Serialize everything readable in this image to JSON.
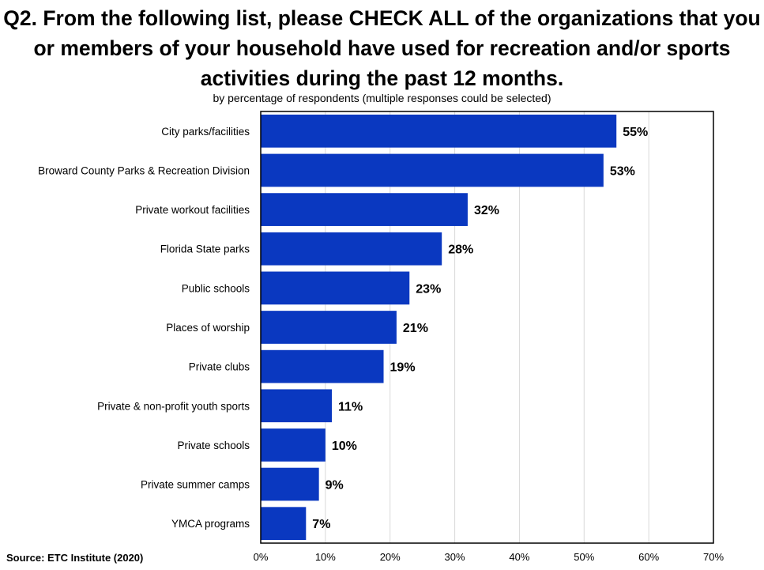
{
  "title": "Q2. From the following list, please CHECK ALL of the organizations that you or members of your household have used for recreation and/or sports activities during the past 12 months.",
  "subtitle": "by percentage of respondents (multiple responses could be selected)",
  "source": "Source:  ETC Institute (2020)",
  "colors": {
    "bar": "#0a38c0",
    "grid": "#d9d9d9",
    "frame": "#000000"
  },
  "chart_data": {
    "type": "bar",
    "orientation": "horizontal",
    "categories": [
      "City parks/facilities",
      "Broward County Parks & Recreation Division",
      "Private workout facilities",
      "Florida State parks",
      "Public schools",
      "Places of worship",
      "Private clubs",
      "Private & non-profit youth sports",
      "Private schools",
      "Private summer camps",
      "YMCA programs"
    ],
    "values": [
      55,
      53,
      32,
      28,
      23,
      21,
      19,
      11,
      10,
      9,
      7
    ],
    "value_labels": [
      "55%",
      "53%",
      "32%",
      "28%",
      "23%",
      "21%",
      "19%",
      "11%",
      "10%",
      "9%",
      "7%"
    ],
    "xlim": [
      0,
      70
    ],
    "xticks": [
      0,
      10,
      20,
      30,
      40,
      50,
      60,
      70
    ],
    "xtick_labels": [
      "0%",
      "10%",
      "20%",
      "30%",
      "40%",
      "50%",
      "60%",
      "70%"
    ],
    "grid": true,
    "legend": false
  }
}
